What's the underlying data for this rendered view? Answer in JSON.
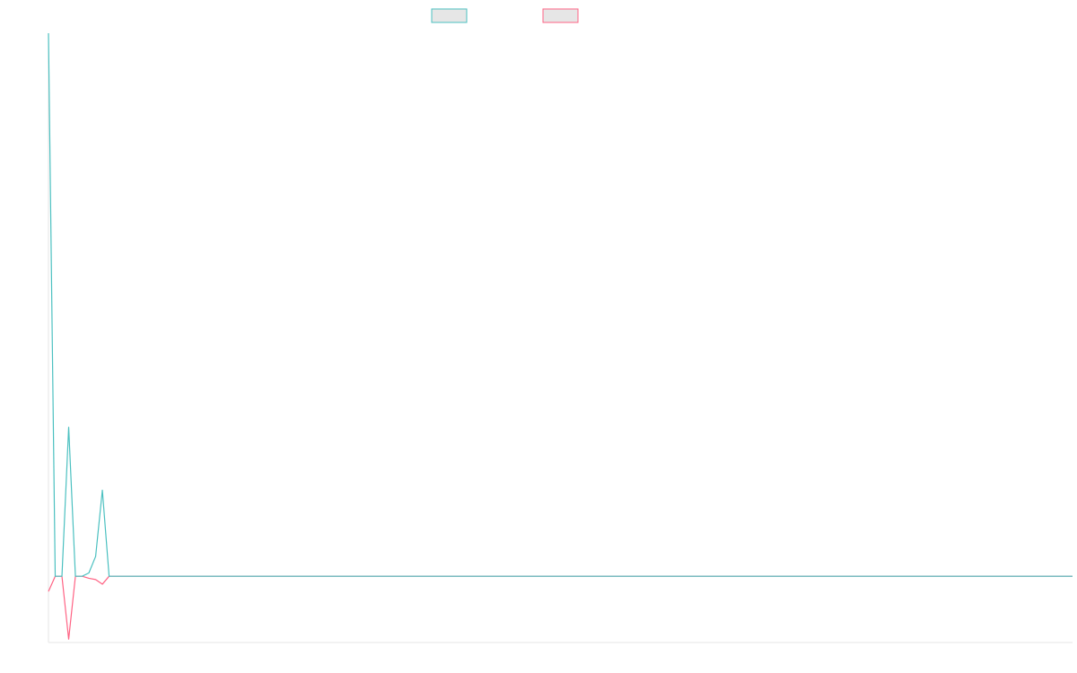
{
  "chart_data": {
    "type": "line",
    "title": "",
    "xlabel": "",
    "ylabel": "",
    "grid": false,
    "legend": {
      "placement": "top-center",
      "entries": [
        "",
        ""
      ]
    },
    "x": [
      0,
      1,
      2,
      3,
      4,
      5,
      6,
      7,
      8,
      9,
      10,
      11,
      12,
      13,
      14,
      15,
      16,
      17,
      18,
      19,
      20,
      21,
      22,
      23,
      24,
      25,
      26,
      27,
      28,
      29,
      30,
      31,
      32,
      33,
      34,
      35,
      36,
      37,
      38,
      39,
      40,
      41,
      42,
      43,
      44,
      45,
      46,
      47,
      48,
      49,
      50,
      51,
      52,
      53,
      54,
      55,
      56,
      57,
      58,
      59,
      60,
      61,
      62,
      63,
      64,
      65,
      66,
      67,
      68,
      69,
      70,
      71,
      72,
      73,
      74,
      75,
      76,
      77,
      78,
      79,
      80,
      81,
      82,
      83,
      84,
      85,
      86,
      87,
      88,
      89,
      90,
      91,
      92,
      93,
      94,
      95,
      96,
      97,
      98,
      99,
      100,
      101,
      102,
      103,
      104,
      105,
      106,
      107,
      108,
      109,
      110,
      111,
      112,
      113,
      114,
      115,
      116,
      117,
      118,
      119,
      120,
      121,
      122,
      123,
      124,
      125,
      126,
      127,
      128,
      129,
      130,
      131,
      132,
      133,
      134,
      135,
      136,
      137,
      138,
      139,
      140,
      141,
      142,
      143,
      144,
      145,
      146,
      147,
      148,
      149,
      150,
      151,
      152
    ],
    "ylim": [
      -10,
      82
    ],
    "series": [
      {
        "color": "#4bc0c0",
        "values": [
          82,
          0,
          0,
          22.5,
          0,
          0,
          0.5,
          3,
          13,
          0,
          0,
          0,
          0,
          0,
          0,
          0,
          0,
          0,
          0,
          0,
          0,
          0,
          0,
          0,
          0,
          0,
          0,
          0,
          0,
          0,
          0,
          0,
          0,
          0,
          0,
          0,
          0,
          0,
          0,
          0,
          0,
          0,
          0,
          0,
          0,
          0,
          0,
          0,
          0,
          0,
          0,
          0,
          0,
          0,
          0,
          0,
          0,
          0,
          0,
          0,
          0,
          0,
          0,
          0,
          0,
          0,
          0,
          0,
          0,
          0,
          0,
          0,
          0,
          0,
          0,
          0,
          0,
          0,
          0,
          0,
          0,
          0,
          0,
          0,
          0,
          0,
          0,
          0,
          0,
          0,
          0,
          0,
          0,
          0,
          0,
          0,
          0,
          0,
          0,
          0,
          0,
          0,
          0,
          0,
          0,
          0,
          0,
          0,
          0,
          0,
          0,
          0,
          0,
          0,
          0,
          0,
          0,
          0,
          0,
          0,
          0,
          0,
          0,
          0,
          0,
          0,
          0,
          0,
          0,
          0,
          0,
          0,
          0,
          0,
          0,
          0,
          0,
          0,
          0,
          0,
          0,
          0,
          0,
          0,
          0,
          0,
          0,
          0,
          0,
          0,
          0,
          0,
          0
        ]
      },
      {
        "color": "#ff6384",
        "values": [
          -2.3,
          0,
          0,
          -9.5,
          0,
          0,
          -0.3,
          -0.5,
          -1.2,
          0,
          0,
          0,
          0,
          0,
          0,
          0,
          0,
          0,
          0,
          0,
          0,
          0,
          0,
          0,
          0,
          0,
          0,
          0,
          0,
          0,
          0,
          0,
          0,
          0,
          0,
          0,
          0,
          0,
          0,
          0,
          0,
          0,
          0,
          0,
          0,
          0,
          0,
          0,
          0,
          0,
          0,
          0,
          0,
          0,
          0,
          0,
          0,
          0,
          0,
          0,
          0,
          0,
          0,
          0,
          0,
          0,
          0,
          0,
          0,
          0,
          0,
          0,
          0,
          0,
          0,
          0,
          0,
          0,
          0,
          0,
          0,
          0,
          0,
          0,
          0,
          0,
          0,
          0,
          0,
          0,
          0,
          0,
          0,
          0,
          0,
          0,
          0,
          0,
          0,
          0,
          0,
          0,
          0,
          0,
          0,
          0,
          0,
          0,
          0,
          0,
          0,
          0,
          0,
          0,
          0,
          0,
          0,
          0,
          0,
          0,
          0,
          0,
          0,
          0,
          0,
          0,
          0,
          0,
          0,
          0,
          0,
          0,
          0,
          0,
          0,
          0,
          0,
          0,
          0,
          0,
          0,
          0,
          0,
          0,
          0,
          0,
          0,
          0,
          0,
          0,
          0,
          0,
          0
        ]
      }
    ]
  }
}
